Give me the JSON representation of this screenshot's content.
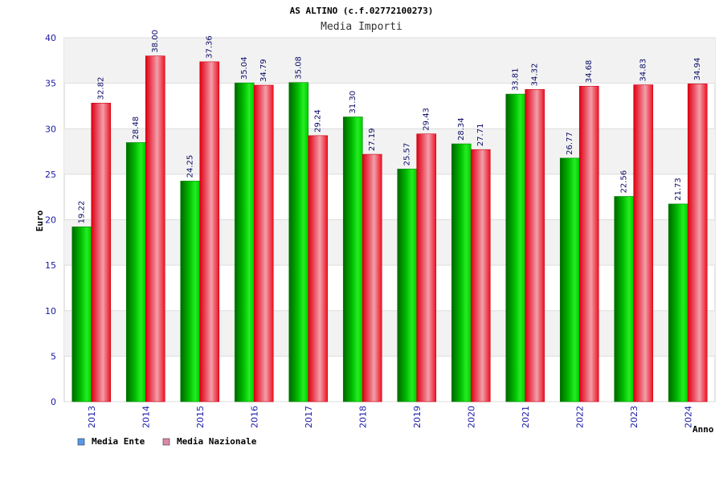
{
  "chart_data": {
    "type": "bar",
    "title": "AS ALTINO (c.f.02772100273)",
    "subtitle": "Media Importi",
    "ylabel": "Euro",
    "xlabel": "Anno",
    "ylim": [
      0,
      40
    ],
    "yticks": [
      "0",
      "5",
      "10",
      "15",
      "20",
      "25",
      "30",
      "35",
      "40"
    ],
    "grid": true,
    "legend_position": "bottom-left",
    "categories": [
      "2013",
      "2014",
      "2015",
      "2016",
      "2017",
      "2018",
      "2019",
      "2020",
      "2021",
      "2022",
      "2023",
      "2024"
    ],
    "series": [
      {
        "name": "Media Ente",
        "legend_color": "#5599ee",
        "color": "#00cc00",
        "values": [
          19.22,
          28.48,
          24.25,
          35.04,
          35.08,
          31.3,
          25.57,
          28.34,
          33.81,
          26.77,
          22.56,
          21.73
        ],
        "labels": [
          "19.22",
          "28.48",
          "24.25",
          "35.04",
          "35.08",
          "31.30",
          "25.57",
          "28.34",
          "33.81",
          "26.77",
          "22.56",
          "21.73"
        ]
      },
      {
        "name": "Media Nazionale",
        "legend_color": "#dd88aa",
        "color": "#ee1122",
        "values": [
          32.82,
          38.0,
          37.36,
          34.79,
          29.24,
          27.19,
          29.43,
          27.71,
          34.32,
          34.68,
          34.83,
          34.94
        ],
        "labels": [
          "32.82",
          "38.00",
          "37.36",
          "34.79",
          "29.24",
          "27.19",
          "29.43",
          "27.71",
          "34.32",
          "34.68",
          "34.83",
          "34.94"
        ]
      }
    ]
  }
}
